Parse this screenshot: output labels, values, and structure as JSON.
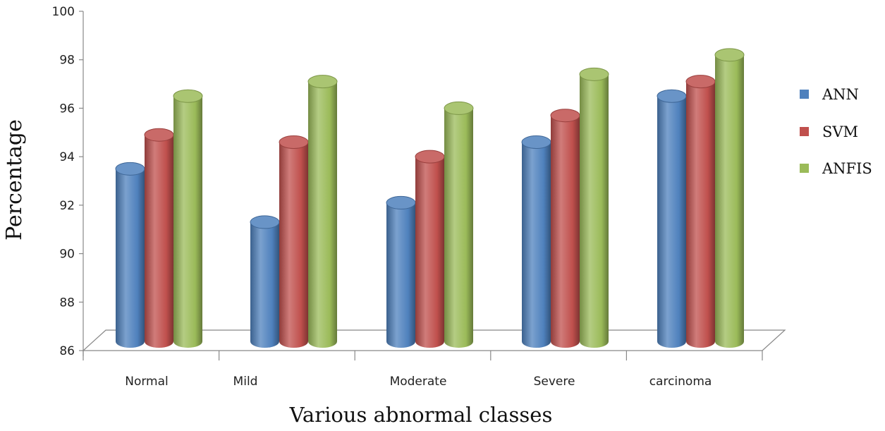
{
  "chart_data": {
    "type": "bar",
    "title": "",
    "xlabel": "Various abnormal classes",
    "ylabel": "Percentage",
    "ylim": [
      86,
      100
    ],
    "yticks": [
      86,
      88,
      90,
      92,
      94,
      96,
      98,
      100
    ],
    "categories": [
      "Normal",
      "Mild",
      "Moderate",
      "Severe",
      "carcinoma"
    ],
    "series": [
      {
        "name": "ANN",
        "color": "#4f81bd",
        "values": [
          93.5,
          91.3,
          92.1,
          94.6,
          96.5
        ]
      },
      {
        "name": "SVM",
        "color": "#c0504d",
        "values": [
          94.9,
          94.6,
          94.0,
          95.7,
          97.1
        ]
      },
      {
        "name": "ANFIS",
        "color": "#9bbb59",
        "values": [
          96.5,
          97.1,
          96.0,
          97.4,
          98.2
        ]
      }
    ],
    "legend": "right",
    "grid": false
  }
}
